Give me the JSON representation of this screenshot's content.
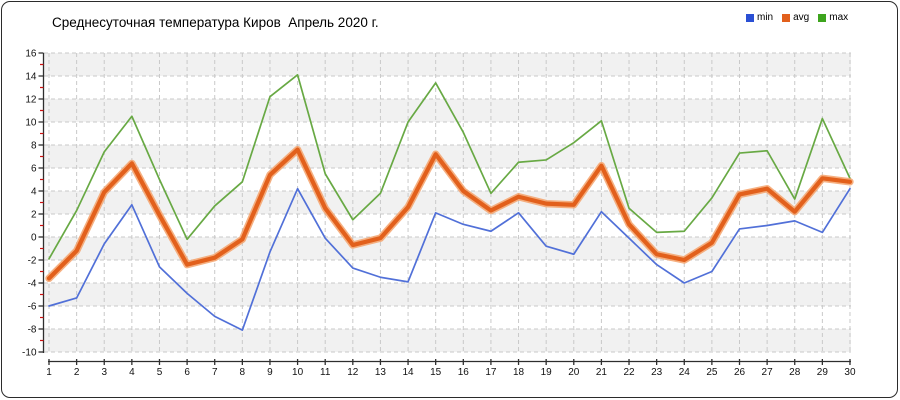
{
  "window": {
    "background": "#ffffff",
    "frame_border_color": "#2b2b2b"
  },
  "title": "Среднесуточная температура Киров  Апрель 2020 г.",
  "legend": [
    {
      "label": "min",
      "color": "#2a4fd4"
    },
    {
      "label": "avg",
      "color": "#e2601c"
    },
    {
      "label": "max",
      "color": "#3da41d"
    }
  ],
  "chart_data": {
    "type": "line",
    "title": "Среднесуточная температура Киров  Апрель 2020 г.",
    "xlabel": "",
    "ylabel": "",
    "x": [
      1,
      2,
      3,
      4,
      5,
      6,
      7,
      8,
      9,
      10,
      11,
      12,
      13,
      14,
      15,
      16,
      17,
      18,
      19,
      20,
      21,
      22,
      23,
      24,
      25,
      26,
      27,
      28,
      29,
      30
    ],
    "xticks": [
      "1",
      "2",
      "3",
      "4",
      "5",
      "6",
      "7",
      "8",
      "9",
      "10",
      "11",
      "12",
      "13",
      "14",
      "15",
      "16",
      "17",
      "18",
      "19",
      "20",
      "21",
      "22",
      "23",
      "24",
      "25",
      "26",
      "27",
      "28",
      "29",
      "30"
    ],
    "ylim": [
      -10,
      16
    ],
    "yticks": [
      16,
      14,
      12,
      10,
      8,
      6,
      4,
      2,
      0,
      -2,
      -4,
      -6,
      -8,
      -10
    ],
    "grid": "dashed",
    "alternating_bands": true,
    "legend_position": "top-right",
    "series": [
      {
        "name": "min",
        "color": "#5170d8",
        "line_width": 1.7,
        "values": [
          -6.0,
          -5.3,
          -0.6,
          2.8,
          -2.6,
          -4.9,
          -6.9,
          -8.1,
          -1.3,
          4.2,
          -0.1,
          -2.7,
          -3.5,
          -3.9,
          2.1,
          1.1,
          0.5,
          2.1,
          -0.8,
          -1.5,
          2.2,
          -0.1,
          -2.4,
          -4.0,
          -3.0,
          0.7,
          1.0,
          1.4,
          0.4,
          4.2
        ]
      },
      {
        "name": "avg",
        "color": "#e2601c",
        "halo_color": "#f4a26b",
        "line_width": 4.2,
        "values": [
          -3.6,
          -1.2,
          3.9,
          6.4,
          1.9,
          -2.4,
          -1.8,
          -0.2,
          5.4,
          7.6,
          2.5,
          -0.7,
          -0.1,
          2.6,
          7.2,
          4.0,
          2.3,
          3.5,
          2.9,
          2.8,
          6.2,
          1.1,
          -1.5,
          -2.0,
          -0.5,
          3.7,
          4.2,
          2.2,
          5.1,
          4.8
        ]
      },
      {
        "name": "max",
        "color": "#68a944",
        "line_width": 1.7,
        "values": [
          -1.9,
          2.3,
          7.4,
          10.5,
          5.0,
          -0.2,
          2.7,
          4.8,
          12.2,
          14.1,
          5.5,
          1.5,
          3.8,
          10.0,
          13.4,
          9.1,
          3.8,
          6.5,
          6.7,
          8.2,
          10.1,
          2.5,
          0.4,
          0.5,
          3.4,
          7.3,
          7.5,
          3.3,
          10.3,
          5.1
        ]
      }
    ],
    "style": {
      "band_color": "#f1f1f1",
      "grid_color": "#c9c9c9",
      "axis_color": "#2e2e2e",
      "tick_label_color": "#111111",
      "minor_tick_color": "#cc1111",
      "tick_label_size": 10
    }
  }
}
